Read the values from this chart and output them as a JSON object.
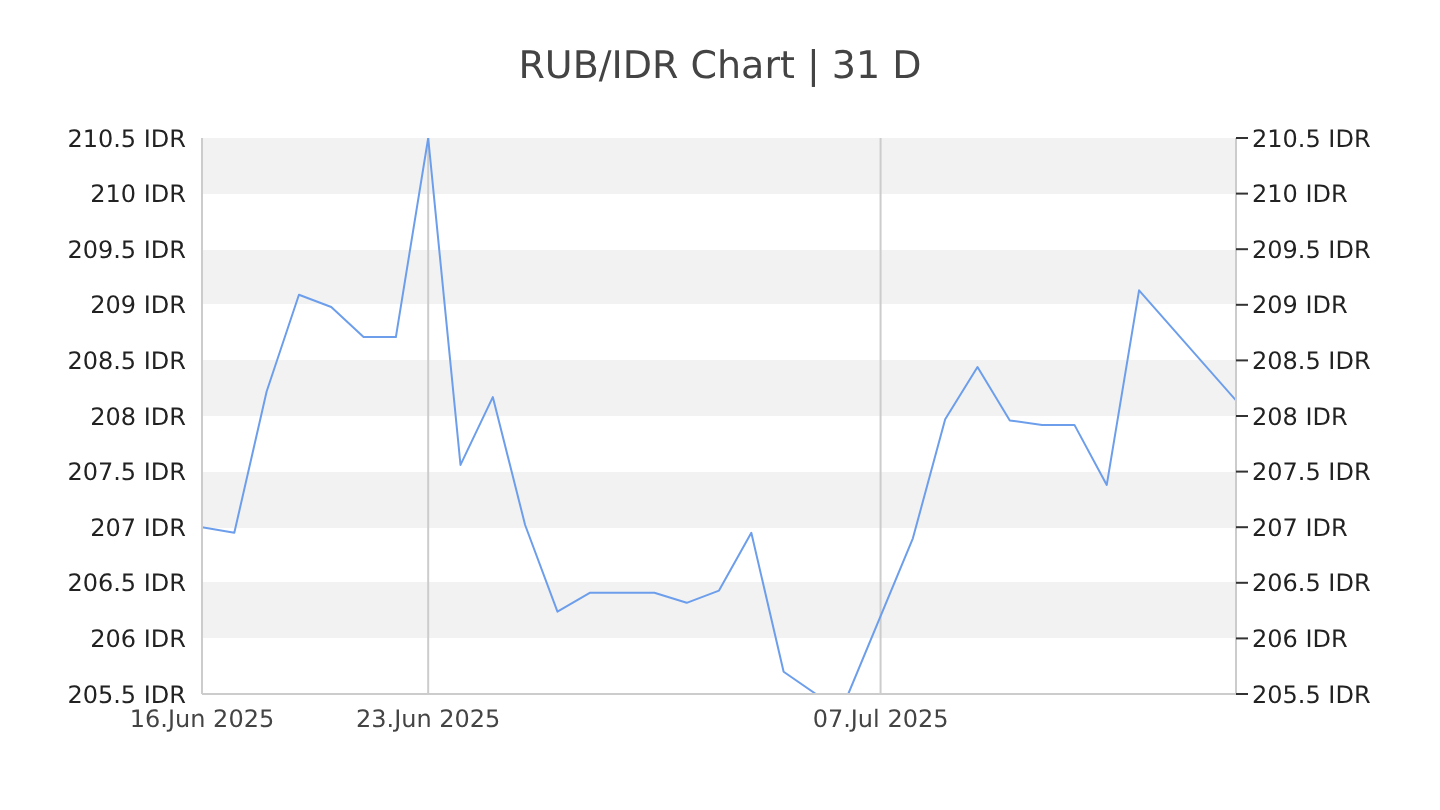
{
  "chart_data": {
    "type": "line",
    "title": "RUB/IDR Chart | 31 D",
    "x": [
      "2025-06-16",
      "2025-06-17",
      "2025-06-18",
      "2025-06-19",
      "2025-06-20",
      "2025-06-21",
      "2025-06-22",
      "2025-06-23",
      "2025-06-24",
      "2025-06-25",
      "2025-06-26",
      "2025-06-27",
      "2025-06-28",
      "2025-06-29",
      "2025-06-30",
      "2025-07-01",
      "2025-07-02",
      "2025-07-03",
      "2025-07-04",
      "2025-07-05",
      "2025-07-06",
      "2025-07-08",
      "2025-07-09",
      "2025-07-10",
      "2025-07-11",
      "2025-07-12",
      "2025-07-13",
      "2025-07-14",
      "2025-07-15",
      "2025-07-18"
    ],
    "series": [
      {
        "color": "#6d9eeb",
        "values": [
          207.0,
          206.95,
          208.22,
          209.09,
          208.98,
          208.71,
          208.71,
          210.5,
          207.56,
          208.17,
          207.02,
          206.24,
          206.41,
          206.41,
          206.41,
          206.32,
          206.43,
          206.95,
          205.7,
          205.5,
          205.5,
          206.9,
          207.97,
          208.44,
          207.96,
          207.92,
          207.92,
          207.38,
          209.13,
          208.14
        ]
      }
    ],
    "xlim": [
      "2025-06-16",
      "2025-07-18"
    ],
    "xticks": [
      {
        "value": "2025-06-16",
        "label": "16.Jun 2025"
      },
      {
        "value": "2025-06-23",
        "label": "23.Jun 2025"
      },
      {
        "value": "2025-07-07",
        "label": "07.Jul 2025"
      }
    ],
    "ylim": [
      205.5,
      210.5
    ],
    "yticks": [
      {
        "value": 205.5,
        "label": "205.5 IDR"
      },
      {
        "value": 206,
        "label": "206 IDR"
      },
      {
        "value": 206.5,
        "label": "206.5 IDR"
      },
      {
        "value": 207,
        "label": "207 IDR"
      },
      {
        "value": 207.5,
        "label": "207.5 IDR"
      },
      {
        "value": 208,
        "label": "208 IDR"
      },
      {
        "value": 208.5,
        "label": "208.5 IDR"
      },
      {
        "value": 209,
        "label": "209 IDR"
      },
      {
        "value": 209.5,
        "label": "209.5 IDR"
      },
      {
        "value": 210,
        "label": "210 IDR"
      },
      {
        "value": 210.5,
        "label": "210.5 IDR"
      }
    ],
    "y2lim": [
      205.5,
      210.5
    ],
    "y2ticks": [
      {
        "value": 205.5,
        "label": "205.5 IDR"
      },
      {
        "value": 206,
        "label": "206 IDR"
      },
      {
        "value": 206.5,
        "label": "206.5 IDR"
      },
      {
        "value": 207,
        "label": "207 IDR"
      },
      {
        "value": 207.5,
        "label": "207.5 IDR"
      },
      {
        "value": 208,
        "label": "208 IDR"
      },
      {
        "value": 208.5,
        "label": "208.5 IDR"
      },
      {
        "value": 209,
        "label": "209 IDR"
      },
      {
        "value": 209.5,
        "label": "209.5 IDR"
      },
      {
        "value": 210,
        "label": "210 IDR"
      },
      {
        "value": 210.5,
        "label": "210.5 IDR"
      }
    ],
    "grid": true,
    "marker": "none",
    "line_style": "solid",
    "legend": false
  }
}
